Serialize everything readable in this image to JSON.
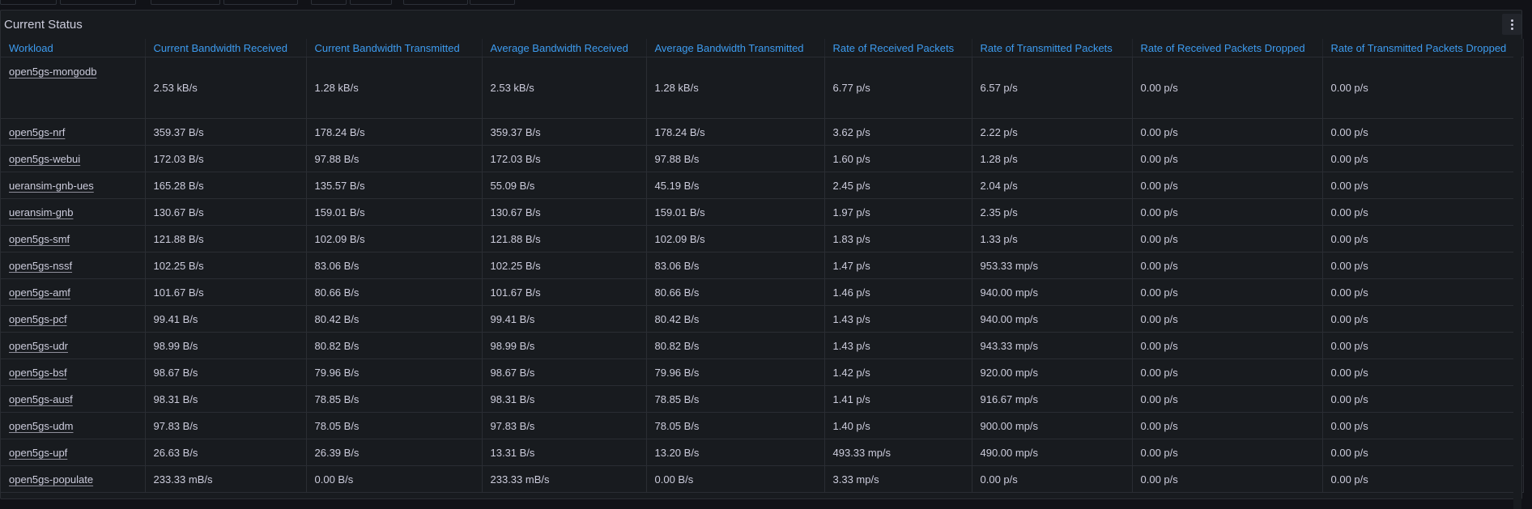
{
  "panel": {
    "title": "Current Status"
  },
  "columns": [
    "Workload",
    "Current Bandwidth Received",
    "Current Bandwidth Transmitted",
    "Average Bandwidth Received",
    "Average Bandwidth Transmitted",
    "Rate of Received Packets",
    "Rate of Transmitted Packets",
    "Rate of Received Packets Dropped",
    "Rate of Transmitted Packets Dropped"
  ],
  "rows": [
    [
      "open5gs-mongodb",
      "2.53 kB/s",
      "1.28 kB/s",
      "2.53 kB/s",
      "1.28 kB/s",
      "6.77 p/s",
      "6.57 p/s",
      "0.00 p/s",
      "0.00 p/s"
    ],
    [
      "open5gs-nrf",
      "359.37 B/s",
      "178.24 B/s",
      "359.37 B/s",
      "178.24 B/s",
      "3.62 p/s",
      "2.22 p/s",
      "0.00 p/s",
      "0.00 p/s"
    ],
    [
      "open5gs-webui",
      "172.03 B/s",
      "97.88 B/s",
      "172.03 B/s",
      "97.88 B/s",
      "1.60 p/s",
      "1.28 p/s",
      "0.00 p/s",
      "0.00 p/s"
    ],
    [
      "ueransim-gnb-ues",
      "165.28 B/s",
      "135.57 B/s",
      "55.09 B/s",
      "45.19 B/s",
      "2.45 p/s",
      "2.04 p/s",
      "0.00 p/s",
      "0.00 p/s"
    ],
    [
      "ueransim-gnb",
      "130.67 B/s",
      "159.01 B/s",
      "130.67 B/s",
      "159.01 B/s",
      "1.97 p/s",
      "2.35 p/s",
      "0.00 p/s",
      "0.00 p/s"
    ],
    [
      "open5gs-smf",
      "121.88 B/s",
      "102.09 B/s",
      "121.88 B/s",
      "102.09 B/s",
      "1.83 p/s",
      "1.33 p/s",
      "0.00 p/s",
      "0.00 p/s"
    ],
    [
      "open5gs-nssf",
      "102.25 B/s",
      "83.06 B/s",
      "102.25 B/s",
      "83.06 B/s",
      "1.47 p/s",
      "953.33 mp/s",
      "0.00 p/s",
      "0.00 p/s"
    ],
    [
      "open5gs-amf",
      "101.67 B/s",
      "80.66 B/s",
      "101.67 B/s",
      "80.66 B/s",
      "1.46 p/s",
      "940.00 mp/s",
      "0.00 p/s",
      "0.00 p/s"
    ],
    [
      "open5gs-pcf",
      "99.41 B/s",
      "80.42 B/s",
      "99.41 B/s",
      "80.42 B/s",
      "1.43 p/s",
      "940.00 mp/s",
      "0.00 p/s",
      "0.00 p/s"
    ],
    [
      "open5gs-udr",
      "98.99 B/s",
      "80.82 B/s",
      "98.99 B/s",
      "80.82 B/s",
      "1.43 p/s",
      "943.33 mp/s",
      "0.00 p/s",
      "0.00 p/s"
    ],
    [
      "open5gs-bsf",
      "98.67 B/s",
      "79.96 B/s",
      "98.67 B/s",
      "79.96 B/s",
      "1.42 p/s",
      "920.00 mp/s",
      "0.00 p/s",
      "0.00 p/s"
    ],
    [
      "open5gs-ausf",
      "98.31 B/s",
      "78.85 B/s",
      "98.31 B/s",
      "78.85 B/s",
      "1.41 p/s",
      "916.67 mp/s",
      "0.00 p/s",
      "0.00 p/s"
    ],
    [
      "open5gs-udm",
      "97.83 B/s",
      "78.05 B/s",
      "97.83 B/s",
      "78.05 B/s",
      "1.40 p/s",
      "900.00 mp/s",
      "0.00 p/s",
      "0.00 p/s"
    ],
    [
      "open5gs-upf",
      "26.63 B/s",
      "26.39 B/s",
      "13.31 B/s",
      "13.20 B/s",
      "493.33 mp/s",
      "490.00 mp/s",
      "0.00 p/s",
      "0.00 p/s"
    ],
    [
      "open5gs-populate",
      "233.33 mB/s",
      "0.00 B/s",
      "233.33 mB/s",
      "0.00 B/s",
      "3.33 mp/s",
      "0.00 p/s",
      "0.00 p/s",
      "0.00 p/s"
    ]
  ],
  "colors": {
    "header_text": "#3d9cf0",
    "panel_bg": "#181b1f",
    "page_bg": "#111217",
    "text": "#ccccdc"
  },
  "icons": {
    "panel_menu": "kebab-menu-icon"
  }
}
